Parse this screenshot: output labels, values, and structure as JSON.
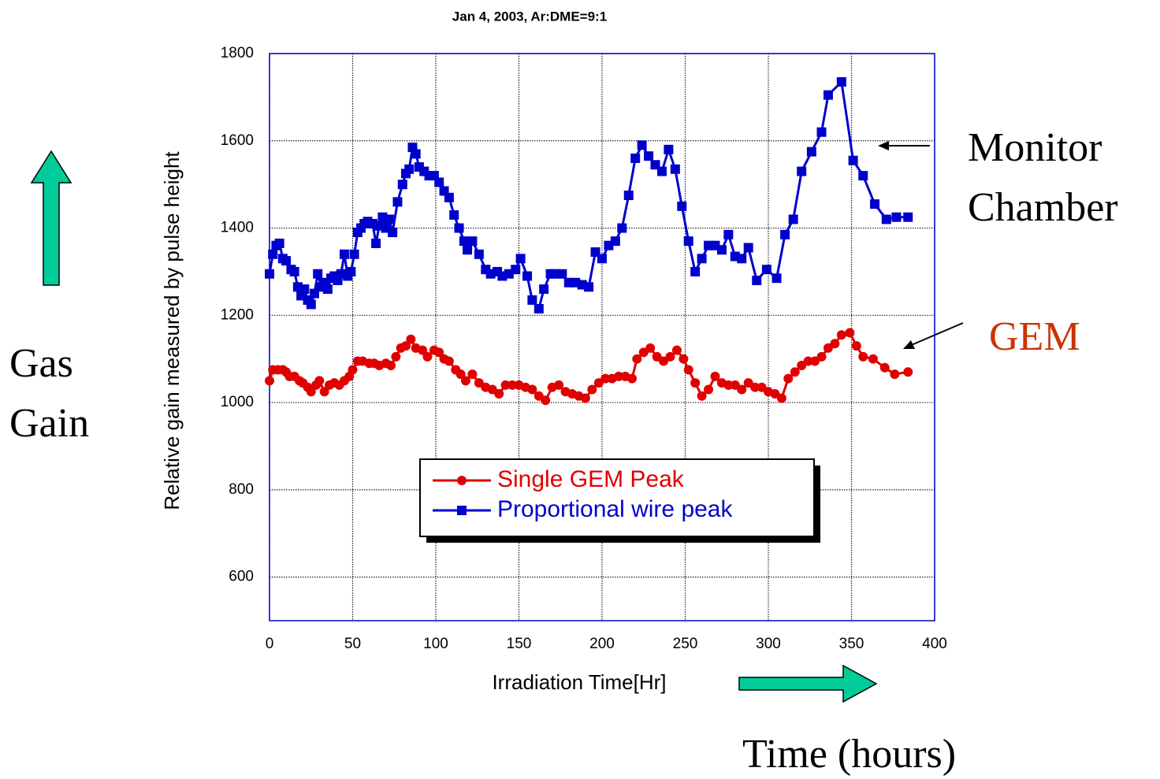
{
  "chart_data": {
    "type": "line",
    "title": "Jan 4, 2003, Ar:DME=9:1",
    "x_label": "Irradiation Time[Hr]",
    "y_label": "Relative gain measured by pulse height",
    "xlim": [
      0,
      400
    ],
    "ylim": [
      500,
      1800
    ],
    "xticks": [
      0,
      50,
      100,
      150,
      200,
      250,
      300,
      350,
      400
    ],
    "yticks": [
      600,
      800,
      1000,
      1200,
      1400,
      1600,
      1800
    ],
    "grid": true,
    "legend": "center",
    "annotations": [
      "Monitor",
      "Chamber",
      "GEM",
      "Gas",
      "Gain",
      "Time  (hours)"
    ],
    "series": [
      {
        "name": "Single GEM Peak",
        "color": "#e00000",
        "marker": "circle",
        "x": [
          0,
          2,
          5,
          8,
          10,
          12,
          15,
          18,
          20,
          23,
          25,
          28,
          30,
          33,
          36,
          39,
          42,
          45,
          48,
          50,
          53,
          56,
          60,
          63,
          66,
          70,
          73,
          76,
          79,
          82,
          85,
          88,
          92,
          95,
          99,
          102,
          105,
          108,
          112,
          115,
          118,
          122,
          126,
          130,
          134,
          138,
          142,
          146,
          150,
          154,
          158,
          162,
          166,
          170,
          174,
          178,
          182,
          186,
          190,
          194,
          198,
          202,
          206,
          210,
          214,
          218,
          221,
          225,
          229,
          233,
          237,
          241,
          245,
          249,
          252,
          256,
          260,
          264,
          268,
          272,
          276,
          280,
          284,
          288,
          292,
          296,
          300,
          304,
          308,
          312,
          316,
          320,
          324,
          328,
          332,
          336,
          340,
          344,
          349,
          353,
          357,
          363,
          370,
          376,
          384
        ],
        "values": [
          1050,
          1075,
          1075,
          1075,
          1070,
          1060,
          1060,
          1050,
          1045,
          1035,
          1025,
          1040,
          1050,
          1025,
          1040,
          1045,
          1040,
          1050,
          1060,
          1075,
          1095,
          1095,
          1090,
          1090,
          1085,
          1090,
          1085,
          1105,
          1125,
          1130,
          1145,
          1125,
          1120,
          1105,
          1120,
          1115,
          1100,
          1095,
          1075,
          1065,
          1050,
          1065,
          1045,
          1035,
          1030,
          1020,
          1040,
          1040,
          1040,
          1035,
          1030,
          1015,
          1005,
          1035,
          1040,
          1025,
          1020,
          1015,
          1010,
          1030,
          1045,
          1055,
          1055,
          1060,
          1060,
          1055,
          1100,
          1115,
          1125,
          1105,
          1095,
          1105,
          1120,
          1100,
          1075,
          1045,
          1015,
          1030,
          1060,
          1045,
          1040,
          1040,
          1030,
          1045,
          1035,
          1035,
          1025,
          1020,
          1010,
          1055,
          1070,
          1085,
          1095,
          1095,
          1105,
          1125,
          1135,
          1155,
          1160,
          1130,
          1105,
          1100,
          1080,
          1065,
          1070
        ]
      },
      {
        "name": "Proportional wire peak",
        "color": "#0000cc",
        "marker": "square",
        "x": [
          0,
          2,
          4,
          6,
          8,
          10,
          13,
          15,
          17,
          19,
          21,
          23,
          25,
          27,
          29,
          31,
          33,
          35,
          37,
          39,
          41,
          43,
          45,
          47,
          49,
          51,
          53,
          55,
          57,
          59,
          62,
          64,
          66,
          68,
          70,
          72,
          74,
          77,
          80,
          82,
          84,
          86,
          88,
          90,
          93,
          96,
          99,
          102,
          105,
          108,
          111,
          114,
          117,
          119,
          122,
          126,
          130,
          133,
          137,
          140,
          144,
          148,
          151,
          155,
          158,
          162,
          165,
          169,
          172,
          176,
          180,
          184,
          188,
          192,
          196,
          200,
          204,
          208,
          212,
          216,
          220,
          224,
          228,
          232,
          236,
          240,
          244,
          248,
          252,
          256,
          260,
          264,
          268,
          272,
          276,
          280,
          284,
          288,
          293,
          299,
          305,
          310,
          315,
          320,
          326,
          332,
          336,
          344,
          351,
          357,
          364,
          371,
          377,
          384
        ],
        "values": [
          1295,
          1340,
          1360,
          1365,
          1330,
          1325,
          1305,
          1300,
          1265,
          1245,
          1260,
          1235,
          1225,
          1250,
          1295,
          1265,
          1275,
          1260,
          1285,
          1290,
          1280,
          1295,
          1340,
          1290,
          1300,
          1340,
          1390,
          1400,
          1410,
          1415,
          1410,
          1365,
          1405,
          1425,
          1400,
          1420,
          1390,
          1460,
          1500,
          1525,
          1535,
          1585,
          1570,
          1540,
          1530,
          1520,
          1520,
          1505,
          1485,
          1470,
          1430,
          1400,
          1370,
          1350,
          1370,
          1340,
          1305,
          1295,
          1300,
          1290,
          1295,
          1305,
          1330,
          1290,
          1235,
          1215,
          1260,
          1295,
          1295,
          1295,
          1275,
          1275,
          1270,
          1265,
          1345,
          1330,
          1360,
          1370,
          1400,
          1475,
          1560,
          1590,
          1565,
          1545,
          1530,
          1580,
          1535,
          1450,
          1370,
          1300,
          1330,
          1360,
          1360,
          1350,
          1385,
          1335,
          1330,
          1355,
          1280,
          1305,
          1285,
          1385,
          1420,
          1530,
          1575,
          1620,
          1705,
          1735,
          1555,
          1520,
          1455,
          1420,
          1425,
          1425
        ]
      }
    ]
  }
}
